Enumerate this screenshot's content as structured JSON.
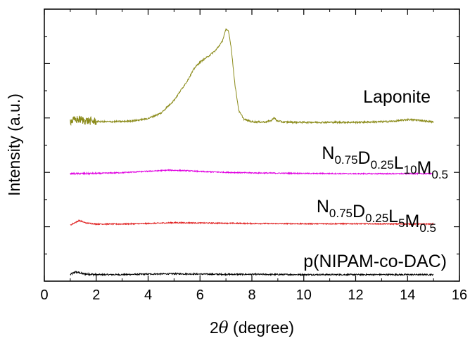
{
  "chart_data": {
    "type": "line",
    "xlabel_prefix": "2",
    "xlabel_symbol": "θ",
    "xlabel_suffix": " (degree)",
    "ylabel": "Intensity (a.u.)",
    "xlim": [
      0,
      16
    ],
    "ylim": [
      0,
      100
    ],
    "x_ticks": [
      "0",
      "2",
      "4",
      "6",
      "8",
      "10",
      "12",
      "14",
      "16"
    ],
    "y_ticks_labeled": false,
    "legend": "none (series labeled inline)",
    "series": [
      {
        "id": "pnipam",
        "label_parts": [
          {
            "t": "p(NIPAM-co-DAC)",
            "sub": false
          }
        ],
        "color": "#000000",
        "noise_low": 0.35,
        "noise_high": 0.25,
        "points": [
          [
            1.0,
            2.4
          ],
          [
            1.2,
            3.4
          ],
          [
            1.5,
            2.7
          ],
          [
            2,
            2.4
          ],
          [
            3,
            2.4
          ],
          [
            4,
            2.6
          ],
          [
            5,
            2.7
          ],
          [
            6,
            2.6
          ],
          [
            7,
            2.5
          ],
          [
            8,
            2.5
          ],
          [
            10,
            2.4
          ],
          [
            12,
            2.4
          ],
          [
            14,
            2.4
          ],
          [
            15,
            2.4
          ]
        ]
      },
      {
        "id": "l5",
        "label_parts": [
          {
            "t": "N",
            "sub": false
          },
          {
            "t": "0.75",
            "sub": true
          },
          {
            "t": "D",
            "sub": false
          },
          {
            "t": "0.25",
            "sub": true
          },
          {
            "t": "L",
            "sub": false
          },
          {
            "t": "5",
            "sub": true
          },
          {
            "t": "M",
            "sub": false
          },
          {
            "t": "0.5",
            "sub": true
          }
        ],
        "color": "#e02020",
        "noise_low": 0.2,
        "noise_high": 0.2,
        "points": [
          [
            1.0,
            20.6
          ],
          [
            1.2,
            21.6
          ],
          [
            1.35,
            22.3
          ],
          [
            1.6,
            21.4
          ],
          [
            2,
            21.0
          ],
          [
            3,
            21.0
          ],
          [
            4,
            21.2
          ],
          [
            5,
            21.5
          ],
          [
            6,
            21.4
          ],
          [
            7,
            21.3
          ],
          [
            8,
            21.2
          ],
          [
            10,
            21.1
          ],
          [
            12,
            21.1
          ],
          [
            14,
            21.0
          ],
          [
            15,
            21.0
          ]
        ]
      },
      {
        "id": "l10",
        "label_parts": [
          {
            "t": "N",
            "sub": false
          },
          {
            "t": "0.75",
            "sub": true
          },
          {
            "t": "D",
            "sub": false
          },
          {
            "t": "0.25",
            "sub": true
          },
          {
            "t": "L",
            "sub": false
          },
          {
            "t": "10",
            "sub": true
          },
          {
            "t": "M",
            "sub": false
          },
          {
            "t": "0.5",
            "sub": true
          }
        ],
        "color": "#e000e0",
        "noise_low": 0.3,
        "noise_high": 0.2,
        "points": [
          [
            1.0,
            39.5
          ],
          [
            2,
            39.6
          ],
          [
            3,
            39.9
          ],
          [
            4,
            40.4
          ],
          [
            4.8,
            40.8
          ],
          [
            5.5,
            40.6
          ],
          [
            6,
            40.3
          ],
          [
            7,
            40.0
          ],
          [
            8,
            39.8
          ],
          [
            10,
            39.6
          ],
          [
            12,
            39.5
          ],
          [
            14,
            39.5
          ],
          [
            15,
            39.5
          ]
        ]
      },
      {
        "id": "laponite",
        "label_parts": [
          {
            "t": "Laponite",
            "sub": false
          }
        ],
        "color": "#8b8b1a",
        "noise_low": 1.5,
        "noise_high": 0.3,
        "points": [
          [
            1.0,
            58.8
          ],
          [
            1.3,
            59.5
          ],
          [
            1.6,
            59.0
          ],
          [
            2,
            58.7
          ],
          [
            2.5,
            58.6
          ],
          [
            3,
            58.7
          ],
          [
            3.5,
            59.0
          ],
          [
            4,
            59.8
          ],
          [
            4.5,
            61.8
          ],
          [
            5,
            66.5
          ],
          [
            5.5,
            73.5
          ],
          [
            5.8,
            78.5
          ],
          [
            6.0,
            80.5
          ],
          [
            6.3,
            82.5
          ],
          [
            6.6,
            84.8
          ],
          [
            6.85,
            88.0
          ],
          [
            7.0,
            92.5
          ],
          [
            7.1,
            92.0
          ],
          [
            7.2,
            86.0
          ],
          [
            7.35,
            72.0
          ],
          [
            7.5,
            62.5
          ],
          [
            7.7,
            59.5
          ],
          [
            8.0,
            58.6
          ],
          [
            8.5,
            58.5
          ],
          [
            8.75,
            59.0
          ],
          [
            8.85,
            60.2
          ],
          [
            8.95,
            59.0
          ],
          [
            9.2,
            58.5
          ],
          [
            10,
            58.4
          ],
          [
            11,
            58.4
          ],
          [
            12,
            58.4
          ],
          [
            13,
            58.6
          ],
          [
            13.5,
            58.8
          ],
          [
            14,
            59.4
          ],
          [
            14.4,
            59.2
          ],
          [
            14.8,
            58.7
          ],
          [
            15,
            58.5
          ]
        ]
      }
    ]
  }
}
